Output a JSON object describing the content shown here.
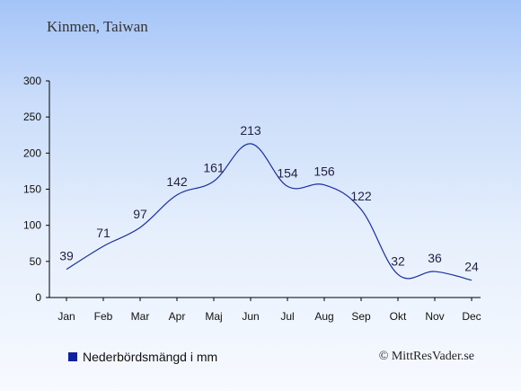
{
  "location_title": "Kinmen, Taiwan",
  "legend_label": "Nederbördsmängd i mm",
  "credit": "© MittResVader.se",
  "colors": {
    "line": "#1a2ea0",
    "legend_swatch": "#1020a0",
    "axis": "#000000",
    "label": "#222244"
  },
  "chart_data": {
    "type": "line",
    "title": "Kinmen, Taiwan",
    "categories": [
      "Jan",
      "Feb",
      "Mar",
      "Apr",
      "Maj",
      "Jun",
      "Jul",
      "Aug",
      "Sep",
      "Okt",
      "Nov",
      "Dec"
    ],
    "series": [
      {
        "name": "Nederbördsmängd i mm",
        "values": [
          39,
          71,
          97,
          142,
          161,
          213,
          154,
          156,
          122,
          32,
          36,
          24
        ]
      }
    ],
    "ylim": [
      0,
      300
    ],
    "yticks": [
      0,
      50,
      100,
      150,
      200,
      250,
      300
    ],
    "grid": false,
    "legend_position": "bottom-left"
  }
}
